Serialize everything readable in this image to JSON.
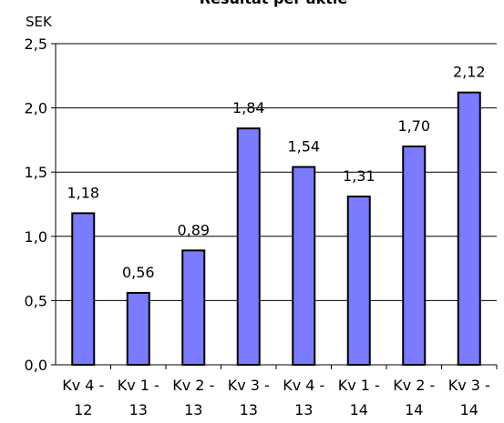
{
  "chart_data": {
    "type": "bar",
    "title": "Resultat per aktie",
    "ylabel": "SEK",
    "xlabel": "",
    "ylim": [
      0,
      2.5
    ],
    "yticks": [
      "0,0",
      "0,5",
      "1,0",
      "1,5",
      "2,0",
      "2,5"
    ],
    "categories": [
      [
        "Kv 4 -",
        "12"
      ],
      [
        "Kv 1 -",
        "13"
      ],
      [
        "Kv 2 -",
        "13"
      ],
      [
        "Kv 3 -",
        "13"
      ],
      [
        "Kv 4 -",
        "13"
      ],
      [
        "Kv 1 -",
        "14"
      ],
      [
        "Kv 2 -",
        "14"
      ],
      [
        "Kv 3 -",
        "14"
      ]
    ],
    "values": [
      1.18,
      0.56,
      0.89,
      1.84,
      1.54,
      1.31,
      1.7,
      2.12
    ],
    "value_labels": [
      "1,18",
      "0,56",
      "0,89",
      "1,84",
      "1,54",
      "1,31",
      "1,70",
      "2,12"
    ],
    "bar_color": "#7b7bff",
    "grid": true,
    "legend": false
  }
}
